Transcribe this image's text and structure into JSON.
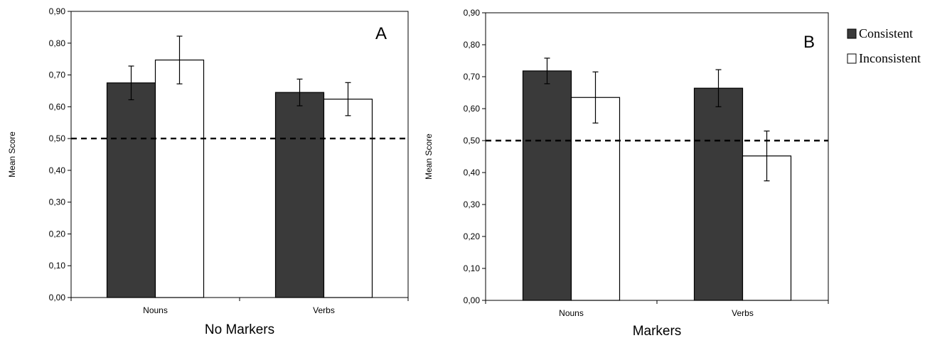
{
  "legend": [
    {
      "label": "Consistent",
      "color": "#3a3a3a"
    },
    {
      "label": "Inconsistent",
      "color": "#ffffff"
    }
  ],
  "chart_data": [
    {
      "type": "bar",
      "panel_label": "A",
      "xlabel": "No Markers",
      "ylabel": "Mean Score",
      "categories": [
        "Nouns",
        "Verbs"
      ],
      "ylim": [
        0,
        0.9
      ],
      "yticks": [
        "0,00",
        "0,10",
        "0,20",
        "0,30",
        "0,40",
        "0,50",
        "0,60",
        "0,70",
        "0,80",
        "0,90"
      ],
      "reference_line": 0.5,
      "series": [
        {
          "name": "Consistent",
          "values": [
            0.675,
            0.645
          ],
          "errors": [
            0.053,
            0.042
          ]
        },
        {
          "name": "Inconsistent",
          "values": [
            0.747,
            0.624
          ],
          "errors": [
            0.075,
            0.052
          ]
        }
      ]
    },
    {
      "type": "bar",
      "panel_label": "B",
      "xlabel": "Markers",
      "ylabel": "Mean Score",
      "categories": [
        "Nouns",
        "Verbs"
      ],
      "ylim": [
        0,
        0.9
      ],
      "yticks": [
        "0,00",
        "0,10",
        "0,20",
        "0,30",
        "0,40",
        "0,50",
        "0,60",
        "0,70",
        "0,80",
        "0,90"
      ],
      "reference_line": 0.5,
      "series": [
        {
          "name": "Consistent",
          "values": [
            0.718,
            0.664
          ],
          "errors": [
            0.04,
            0.058
          ]
        },
        {
          "name": "Inconsistent",
          "values": [
            0.635,
            0.452
          ],
          "errors": [
            0.08,
            0.078
          ]
        }
      ]
    }
  ]
}
